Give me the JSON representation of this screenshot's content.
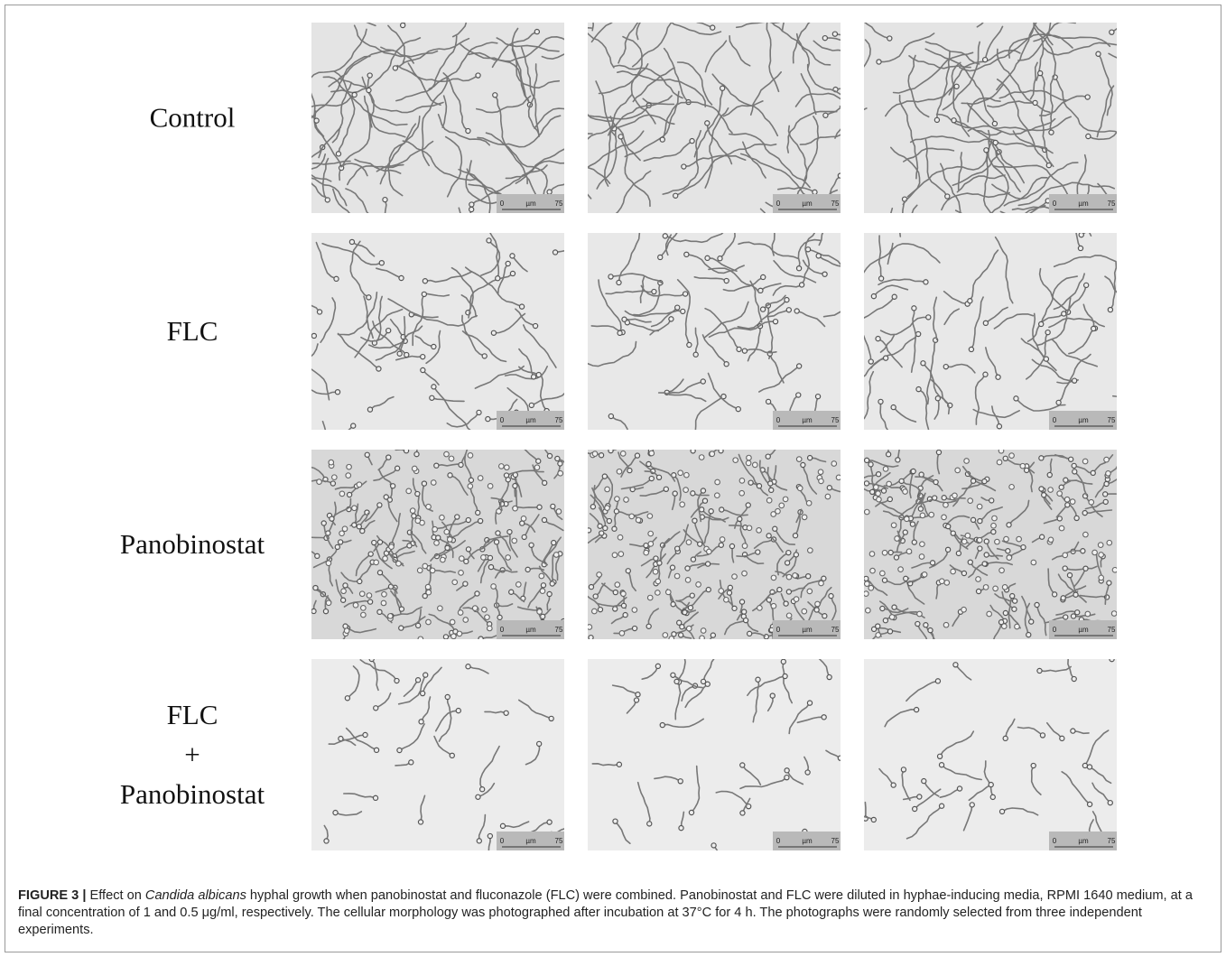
{
  "figure": {
    "rows": [
      {
        "label": [
          "Control"
        ],
        "panels": [
          {
            "scale": {
              "min": "0",
              "unit": "µm",
              "max": "75"
            }
          },
          {
            "scale": {
              "min": "0",
              "unit": "µm",
              "max": "75"
            }
          },
          {
            "scale": {
              "min": "0",
              "unit": "µm",
              "max": "75"
            }
          }
        ]
      },
      {
        "label": [
          "FLC"
        ],
        "panels": [
          {
            "scale": {
              "min": "0",
              "unit": "µm",
              "max": "75"
            }
          },
          {
            "scale": {
              "min": "0",
              "unit": "µm",
              "max": "75"
            }
          },
          {
            "scale": {
              "min": "0",
              "unit": "µm",
              "max": "75"
            }
          }
        ]
      },
      {
        "label": [
          "Panobinostat"
        ],
        "panels": [
          {
            "scale": {
              "min": "0",
              "unit": "µm",
              "max": "75"
            }
          },
          {
            "scale": {
              "min": "0",
              "unit": "µm",
              "max": "75"
            }
          },
          {
            "scale": {
              "min": "0",
              "unit": "µm",
              "max": "75"
            }
          }
        ]
      },
      {
        "label": [
          "FLC",
          "+",
          "Panobinostat"
        ],
        "panels": [
          {
            "scale": {
              "min": "0",
              "unit": "µm",
              "max": "75"
            }
          },
          {
            "scale": {
              "min": "0",
              "unit": "µm",
              "max": "75"
            }
          },
          {
            "scale": {
              "min": "0",
              "unit": "µm",
              "max": "75"
            }
          }
        ]
      }
    ],
    "caption": {
      "label": "FIGURE 3 |",
      "before": " Effect on ",
      "species": "Candida albicans",
      "after": " hyphal growth when panobinostat and fluconazole (FLC) were combined. Panobinostat and FLC were diluted in hyphae-inducing media, RPMI 1640 medium, at a final concentration of 1 and 0.5 μg/ml, respectively. The cellular morphology was photographed after incubation at 37°C for 4 h. The photographs were randomly selected from three independent experiments."
    }
  }
}
